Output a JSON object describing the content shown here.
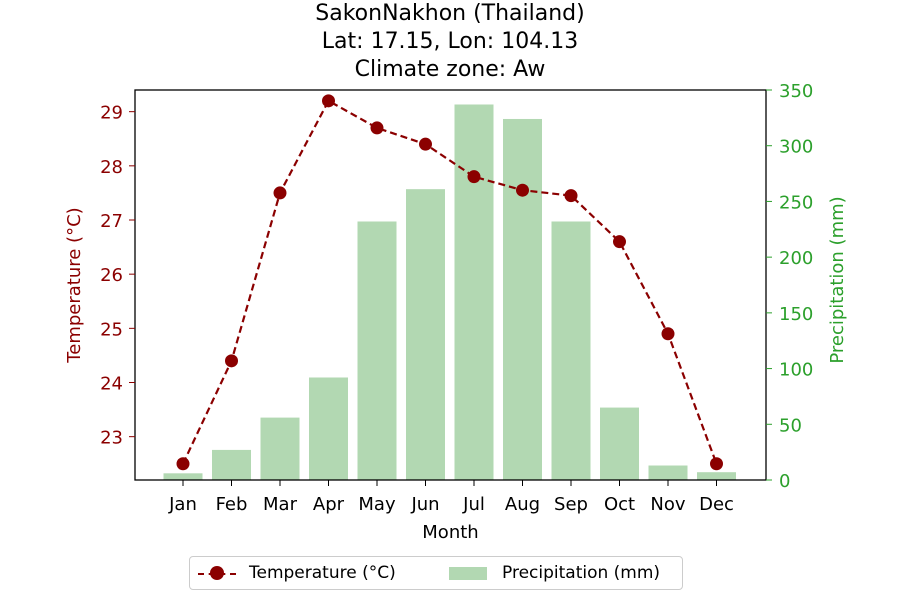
{
  "colors": {
    "temperature": "#8b0000",
    "precipitation": "#2ca02c",
    "precipitation_fill": "#b2d8b2",
    "axis": "#000000"
  },
  "chart_data": {
    "type": "bar+line",
    "title_lines": [
      "SakonNakhon (Thailand)",
      "Lat: 17.15, Lon: 104.13",
      "Climate zone: Aw"
    ],
    "xlabel": "Month",
    "categories": [
      "Jan",
      "Feb",
      "Mar",
      "Apr",
      "May",
      "Jun",
      "Jul",
      "Aug",
      "Sep",
      "Oct",
      "Nov",
      "Dec"
    ],
    "series": [
      {
        "name": "Temperature (°C)",
        "type": "line",
        "axis": "left",
        "values": [
          22.5,
          24.4,
          27.5,
          29.2,
          28.7,
          28.4,
          27.8,
          27.55,
          27.45,
          26.6,
          24.9,
          22.5
        ]
      },
      {
        "name": "Precipitation (mm)",
        "type": "bar",
        "axis": "right",
        "values": [
          6,
          27,
          56,
          92,
          232,
          261,
          337,
          324,
          232,
          65,
          13,
          7
        ]
      }
    ],
    "y_left": {
      "label": "Temperature (°C)",
      "ticks": [
        "23",
        "24",
        "25",
        "26",
        "27",
        "28",
        "29"
      ],
      "range": [
        22.2,
        29.4
      ]
    },
    "y_right": {
      "label": "Precipitation (mm)",
      "ticks": [
        "0",
        "50",
        "100",
        "150",
        "200",
        "250",
        "300",
        "350"
      ],
      "range": [
        0,
        350
      ]
    },
    "grid": false,
    "legend_position": "bottom-center"
  }
}
